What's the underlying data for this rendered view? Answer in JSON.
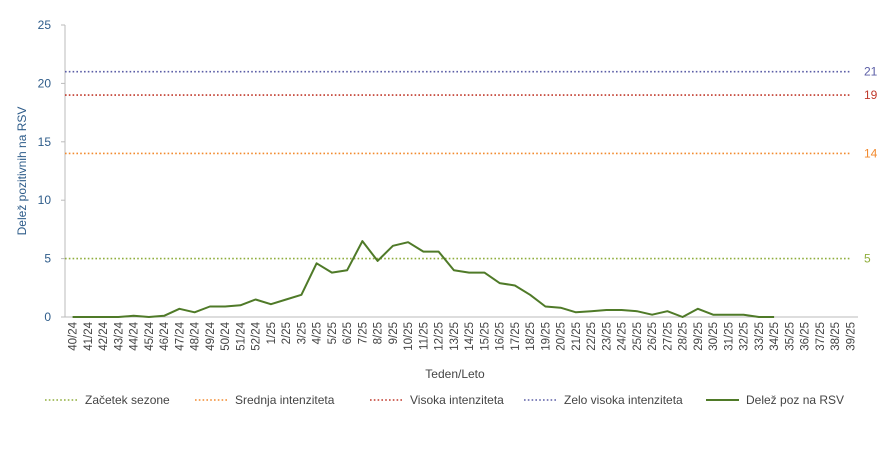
{
  "chart_data": {
    "type": "line",
    "ylabel": "Delež pozitivnih na RSV",
    "xlabel": "Teden/Leto",
    "categories": [
      "40/24",
      "41/24",
      "42/24",
      "43/24",
      "44/24",
      "45/24",
      "46/24",
      "47/24",
      "48/24",
      "49/24",
      "50/24",
      "51/24",
      "52/24",
      "1/25",
      "2/25",
      "3/25",
      "4/25",
      "5/25",
      "6/25",
      "7/25",
      "8/25",
      "9/25",
      "10/25",
      "11/25",
      "12/25",
      "13/25",
      "14/25",
      "15/25",
      "16/25",
      "17/25",
      "18/25",
      "19/25",
      "20/25",
      "21/25",
      "22/25",
      "23/25",
      "24/25",
      "25/25",
      "26/25",
      "27/25",
      "28/25",
      "29/25",
      "30/25",
      "31/25",
      "32/25",
      "33/25",
      "34/25",
      "35/25",
      "36/25",
      "37/25",
      "38/25",
      "39/25"
    ],
    "series": [
      {
        "name": "Delež poz na RSV",
        "color": "#4f7a28",
        "values": [
          0,
          0,
          0,
          0,
          0.1,
          0,
          0.1,
          0.7,
          0.4,
          0.9,
          0.9,
          1.0,
          1.5,
          1.1,
          1.5,
          1.9,
          4.6,
          3.8,
          4.0,
          6.5,
          4.8,
          6.1,
          6.4,
          5.6,
          5.6,
          4.0,
          3.8,
          3.8,
          2.9,
          2.7,
          1.9,
          0.9,
          0.8,
          0.4,
          0.5,
          0.6,
          0.6,
          0.5,
          0.2,
          0.5,
          0,
          0.7,
          0.2,
          0.2,
          0.2,
          0,
          0,
          null,
          null,
          null,
          null,
          null
        ]
      }
    ],
    "thresholds": [
      {
        "name": "Začetek sezone",
        "value": 5,
        "color": "#8fae3c"
      },
      {
        "name": "Srednja intenziteta",
        "value": 14,
        "color": "#f28a2e"
      },
      {
        "name": "Visoka intenziteta",
        "value": 19,
        "color": "#c0392b"
      },
      {
        "name": "Zelo visoka intenziteta",
        "value": 21,
        "color": "#5b5ea6"
      }
    ],
    "ylim": [
      0,
      25
    ],
    "yticks": [
      0,
      5,
      10,
      15,
      20,
      25
    ],
    "grid": false,
    "legend": "bottom"
  }
}
